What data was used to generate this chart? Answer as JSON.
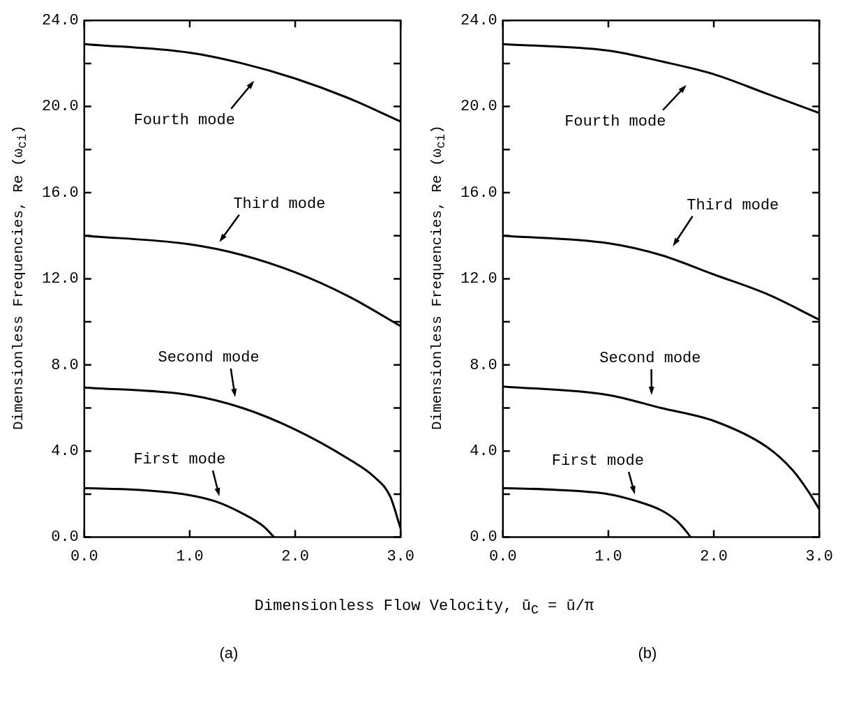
{
  "chart_data": [
    {
      "type": "line",
      "title": "(a)",
      "xlabel": "Dimensionless Flow Velocity, ū$_{C}$ = ū/π",
      "ylabel": "Dimensionless Frequencies, Re (ω$_{ci}$)",
      "xlim": [
        0,
        3
      ],
      "ylim": [
        0,
        24
      ],
      "xticks": [
        {
          "value": 0,
          "label": "0.0"
        },
        {
          "value": 1,
          "label": "1.0"
        },
        {
          "value": 2,
          "label": "2.0"
        },
        {
          "value": 3,
          "label": "3.0"
        }
      ],
      "yticks": [
        {
          "value": 0,
          "label": "0.0"
        },
        {
          "value": 2,
          "label": null
        },
        {
          "value": 4,
          "label": "4.0"
        },
        {
          "value": 6,
          "label": null
        },
        {
          "value": 8,
          "label": "8.0"
        },
        {
          "value": 10,
          "label": null
        },
        {
          "value": 12,
          "label": "12.0"
        },
        {
          "value": 14,
          "label": null
        },
        {
          "value": 16,
          "label": "16.0"
        },
        {
          "value": 18,
          "label": null
        },
        {
          "value": 20,
          "label": "20.0"
        },
        {
          "value": 22,
          "label": null
        },
        {
          "value": 24,
          "label": "24.0"
        }
      ],
      "grid": false,
      "legend": false,
      "line_style": "solid",
      "marker": "none",
      "series": [
        {
          "color": "#000000",
          "x": [
            0,
            0.5,
            1,
            1.25,
            1.5,
            1.7,
            1.8
          ],
          "values": [
            2.28,
            2.2,
            1.95,
            1.65,
            1.1,
            0.5,
            0
          ]
        },
        {
          "color": "#000000",
          "x": [
            0,
            1,
            1.5,
            2,
            2.5,
            2.75,
            2.9,
            3
          ],
          "values": [
            6.95,
            6.6,
            6,
            5,
            3.65,
            2.8,
            1.9,
            0.4
          ]
        },
        {
          "color": "#000000",
          "x": [
            0,
            1,
            1.5,
            2,
            2.5,
            3
          ],
          "values": [
            14,
            13.6,
            13.1,
            12.3,
            11.2,
            9.8
          ]
        },
        {
          "color": "#000000",
          "x": [
            0,
            1,
            1.5,
            2,
            2.5,
            3
          ],
          "values": [
            22.9,
            22.5,
            22,
            21.3,
            20.4,
            19.3
          ]
        }
      ],
      "annotations": [
        "Fourth mode",
        "Third mode",
        "Second mode",
        "First mode"
      ]
    },
    {
      "type": "line",
      "title": "(b)",
      "ylabel": "Dimensionless Frequencies, Re (ω$_{ci}$)",
      "xlim": [
        0,
        3
      ],
      "ylim": [
        0,
        24
      ],
      "xticks": [
        {
          "value": 0,
          "label": "0.0"
        },
        {
          "value": 1,
          "label": "1.0"
        },
        {
          "value": 2,
          "label": "2.0"
        },
        {
          "value": 3,
          "label": "3.0"
        }
      ],
      "yticks": [
        {
          "value": 0,
          "label": "0.0"
        },
        {
          "value": 2,
          "label": null
        },
        {
          "value": 4,
          "label": "4.0"
        },
        {
          "value": 6,
          "label": null
        },
        {
          "value": 8,
          "label": "8.0"
        },
        {
          "value": 10,
          "label": null
        },
        {
          "value": 12,
          "label": "12.0"
        },
        {
          "value": 14,
          "label": null
        },
        {
          "value": 16,
          "label": "16.0"
        },
        {
          "value": 18,
          "label": null
        },
        {
          "value": 20,
          "label": "20.0"
        },
        {
          "value": 22,
          "label": null
        },
        {
          "value": 24,
          "label": "24.0"
        }
      ],
      "grid": false,
      "legend": false,
      "line_style": "solid",
      "marker": "none",
      "series": [
        {
          "color": "#000000",
          "x": [
            0,
            0.5,
            1,
            1.25,
            1.5,
            1.65,
            1.75,
            1.78
          ],
          "values": [
            2.28,
            2.2,
            2,
            1.7,
            1.25,
            0.75,
            0.2,
            0
          ]
        },
        {
          "color": "#000000",
          "x": [
            0,
            1,
            1.5,
            2,
            2.5,
            2.75,
            2.9,
            3
          ],
          "values": [
            7,
            6.6,
            6,
            5.4,
            4.2,
            3.1,
            2.1,
            1.3
          ]
        },
        {
          "color": "#000000",
          "x": [
            0,
            1,
            1.5,
            2,
            2.5,
            3
          ],
          "values": [
            14,
            13.65,
            13.1,
            12.2,
            11.3,
            10.1
          ]
        },
        {
          "color": "#000000",
          "x": [
            0,
            1,
            1.5,
            2,
            2.5,
            3
          ],
          "values": [
            22.9,
            22.6,
            22.1,
            21.5,
            20.6,
            19.7
          ]
        }
      ],
      "annotations": [
        "Fourth mode",
        "Third mode",
        "Second mode",
        "First mode"
      ]
    }
  ]
}
